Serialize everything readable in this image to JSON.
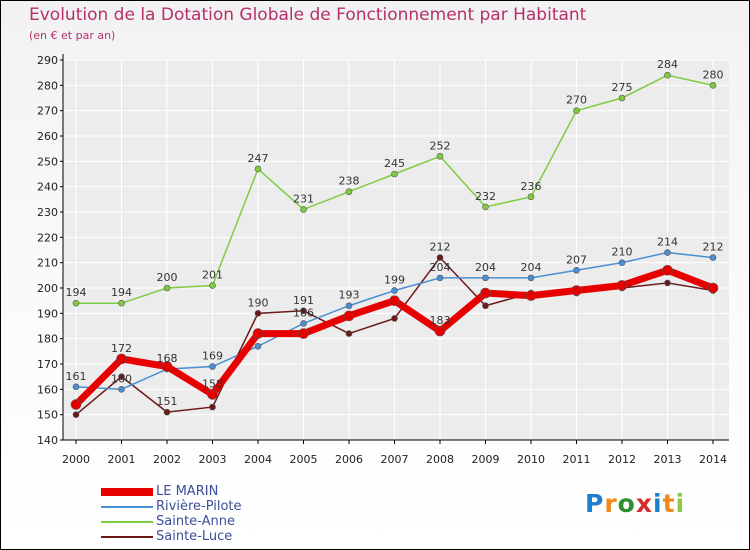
{
  "title": "Evolution de la Dotation Globale de Fonctionnement par Habitant",
  "subtitle": "(en € et par an)",
  "logo": {
    "text": "Proxiti",
    "letters": [
      "P",
      "r",
      "o",
      "x",
      "i",
      "t",
      "i"
    ],
    "colors": [
      "#1e7fcf",
      "#f18a1c",
      "#2e8f2e",
      "#d42d2d",
      "#1e7fcf",
      "#f18a1c",
      "#8dc63f"
    ]
  },
  "colors": {
    "title": "#b5306a",
    "grid": "#ffffff",
    "axis": "#000000"
  },
  "chart_data": {
    "type": "line",
    "title": "Evolution de la Dotation Globale de Fonctionnement par Habitant",
    "subtitle": "(en € et par an)",
    "xlabel": "",
    "ylabel": "",
    "ylim": [
      140,
      290
    ],
    "yticks": [
      140,
      150,
      160,
      170,
      180,
      190,
      200,
      210,
      220,
      230,
      240,
      250,
      260,
      270,
      280,
      290
    ],
    "categories": [
      "2000",
      "2001",
      "2002",
      "2003",
      "2004",
      "2005",
      "2006",
      "2007",
      "2008",
      "2009",
      "2010",
      "2011",
      "2012",
      "2013",
      "2014"
    ],
    "legend_position": "bottom-left",
    "series": [
      {
        "name": "LE MARIN",
        "color": "#e60000",
        "values": [
          154,
          172,
          169,
          158,
          182,
          182,
          189,
          195,
          183,
          198,
          197,
          199,
          201,
          207,
          200
        ],
        "labels": [
          "",
          "172",
          "",
          "158",
          "",
          "",
          "",
          "",
          "183",
          "",
          "",
          "",
          "",
          "",
          ""
        ]
      },
      {
        "name": "Rivière-Pilote",
        "color": "#4a8fd1",
        "values": [
          161,
          160,
          168,
          169,
          177,
          186,
          193,
          199,
          204,
          204,
          204,
          207,
          210,
          214,
          212
        ],
        "labels": [
          "161",
          "160",
          "168",
          "169",
          "",
          "186",
          "193",
          "199",
          "204",
          "204",
          "204",
          "207",
          "210",
          "214",
          "212"
        ]
      },
      {
        "name": "Sainte-Anne",
        "color": "#7fcc3f",
        "values": [
          194,
          194,
          200,
          201,
          247,
          231,
          238,
          245,
          252,
          232,
          236,
          270,
          275,
          284,
          280
        ],
        "labels": [
          "194",
          "194",
          "200",
          "201",
          "247",
          "231",
          "238",
          "245",
          "252",
          "232",
          "236",
          "270",
          "275",
          "284",
          "280"
        ]
      },
      {
        "name": "Sainte-Luce",
        "color": "#6b1a1a",
        "values": [
          150,
          165,
          151,
          153,
          190,
          191,
          182,
          188,
          212,
          193,
          198,
          198,
          200,
          202,
          199
        ],
        "labels": [
          "",
          "",
          "151",
          "",
          "190",
          "191",
          "",
          "",
          "212",
          "",
          "",
          "",
          "",
          "",
          ""
        ]
      }
    ]
  }
}
